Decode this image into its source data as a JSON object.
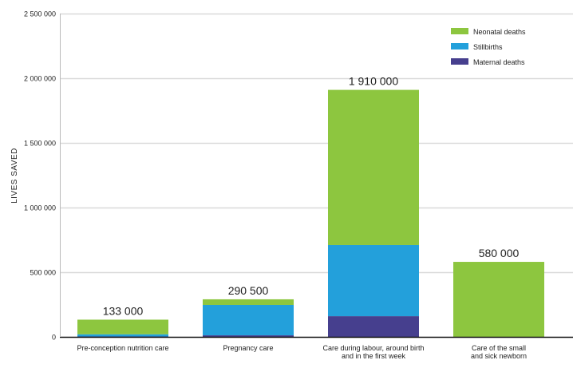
{
  "chart_data": {
    "type": "bar",
    "stacked": true,
    "title": "",
    "xlabel": "",
    "ylabel": "LIVES SAVED",
    "ylim": [
      0,
      2500000
    ],
    "yticks": [
      0,
      500000,
      1000000,
      1500000,
      2000000,
      2500000
    ],
    "ytick_labels": [
      "0",
      "500 000",
      "1 000 000",
      "1 500 000",
      "2 000 000",
      "2 500 000"
    ],
    "grid": true,
    "legend_position": "top-right",
    "categories": [
      [
        "Pre-conception nutrition care"
      ],
      [
        "Pregnancy care"
      ],
      [
        "Care during labour, around birth",
        "and in the first week"
      ],
      [
        "Care of the small",
        "and sick newborn"
      ]
    ],
    "totals": [
      133000,
      290500,
      1910000,
      580000
    ],
    "total_labels": [
      "133 000",
      "290 500",
      "1 910 000",
      "580 000"
    ],
    "series": [
      {
        "name": "Maternal deaths",
        "color": "#463f8e",
        "values": [
          3000,
          12000,
          160000,
          0
        ]
      },
      {
        "name": "Stillbirths",
        "color": "#23a0db",
        "values": [
          17000,
          235000,
          550000,
          0
        ]
      },
      {
        "name": "Neonatal deaths",
        "color": "#8dc63f",
        "values": [
          113000,
          43500,
          1200000,
          580000
        ]
      }
    ],
    "legend_order": [
      "Neonatal deaths",
      "Stillbirths",
      "Maternal deaths"
    ]
  }
}
